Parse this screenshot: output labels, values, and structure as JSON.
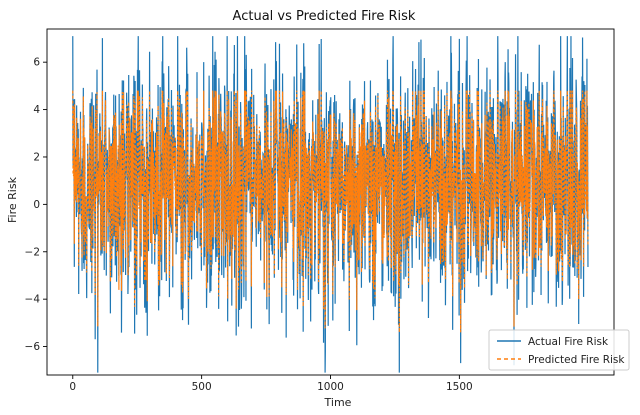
{
  "chart_data": {
    "type": "line",
    "title": "Actual vs Predicted Fire Risk",
    "xlabel": "Time",
    "ylabel": "Fire Risk",
    "xlim": [
      -100,
      2100
    ],
    "ylim": [
      -7.2,
      7.4
    ],
    "x_ticks": [
      0,
      500,
      1000,
      1500
    ],
    "y_ticks": [
      -6,
      -4,
      -2,
      0,
      2,
      4,
      6
    ],
    "grid": false,
    "legend_position": "lower-right",
    "n_points": 2000,
    "series": [
      {
        "name": "Actual Fire Risk",
        "color": "#1f77b4",
        "style": "solid",
        "summary": {
          "mean": 1.0,
          "min": -7.1,
          "max": 7.1
        }
      },
      {
        "name": "Predicted Fire Risk",
        "color": "#ff7f0e",
        "style": "dashed",
        "summary": {
          "mean": 1.0,
          "min": -5.4,
          "max": 4.8
        }
      }
    ]
  }
}
